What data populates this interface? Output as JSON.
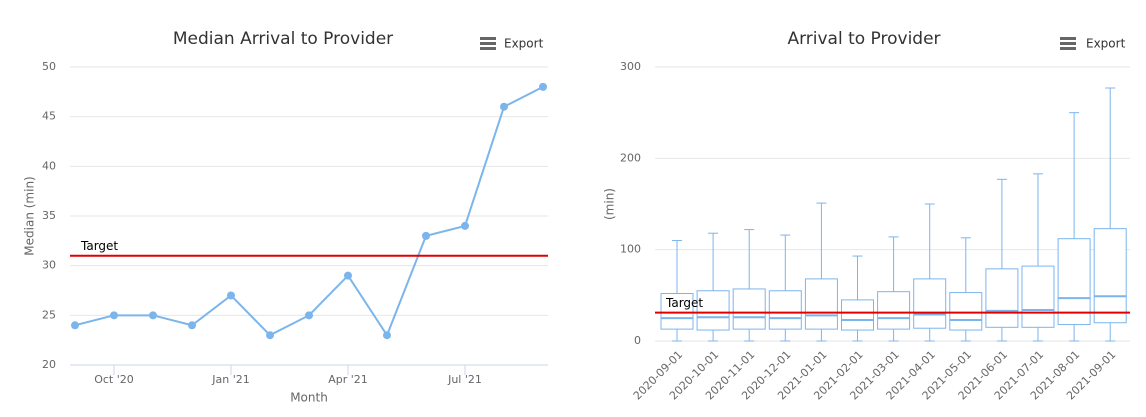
{
  "chart_data": [
    {
      "type": "line",
      "title": "Median Arrival to Provider",
      "export": "Export",
      "x_label": "Month",
      "y_label": "Median (min)",
      "categories": [
        null,
        "Oct '20",
        null,
        null,
        "Jan '21",
        null,
        null,
        "Apr '21",
        null,
        null,
        "Jul '21",
        null,
        null
      ],
      "values": [
        24,
        25,
        25,
        24,
        27,
        23,
        25,
        29,
        23,
        33,
        34,
        46,
        48
      ],
      "color": "#7cb5ec",
      "ylim": [
        20,
        50
      ],
      "yticks": [
        20,
        25,
        30,
        35,
        40,
        45,
        50
      ],
      "grid": true,
      "target": {
        "value": 31,
        "label": "Target",
        "color": "#e00000"
      }
    },
    {
      "type": "box",
      "title": "Arrival to Provider",
      "export": "Export",
      "y_label": "(min)",
      "categories": [
        "2020-09-01",
        "2020-10-01",
        "2020-11-01",
        "2020-12-01",
        "2021-01-01",
        "2021-02-01",
        "2021-03-01",
        "2021-04-01",
        "2021-05-01",
        "2021-06-01",
        "2021-07-01",
        "2021-08-01",
        "2021-09-01"
      ],
      "min": [
        0,
        0,
        0,
        0,
        0,
        0,
        0,
        0,
        0,
        0,
        0,
        0,
        0
      ],
      "q1": [
        13,
        12,
        13,
        13,
        13,
        12,
        13,
        14,
        12,
        15,
        15,
        18,
        20
      ],
      "median": [
        25,
        26,
        26,
        25,
        28,
        23,
        25,
        29,
        23,
        33,
        34,
        47,
        49
      ],
      "q3": [
        52,
        55,
        57,
        55,
        68,
        45,
        54,
        68,
        53,
        79,
        82,
        112,
        123
      ],
      "max": [
        110,
        118,
        122,
        116,
        151,
        93,
        114,
        150,
        113,
        177,
        183,
        250,
        277
      ],
      "color": "#7cb5ec",
      "ylim": [
        0,
        300
      ],
      "yticks": [
        0,
        100,
        200,
        300
      ],
      "grid": true,
      "target": {
        "value": 31,
        "label": "Target",
        "color": "#e00000"
      }
    }
  ]
}
